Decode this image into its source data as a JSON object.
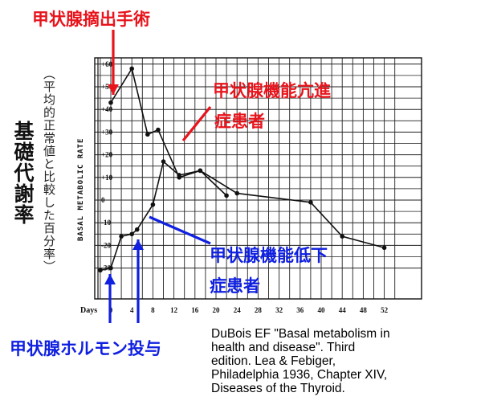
{
  "annotations": {
    "thyroidectomy": "甲状腺摘出手術",
    "hyper_line1": "甲状腺機能亢進",
    "hyper_line2": "症患者",
    "hypo_line1": "甲状腺機能低下",
    "hypo_line2": "症患者",
    "hormone": "甲状腺ホルモン投与"
  },
  "y_axis_label": {
    "main": "基礎代謝率",
    "sub": "（平均的正常値と比較した百分率）"
  },
  "citation": {
    "line1": "DuBois EF  \"Basal metabolism in",
    "line2": "health and   disease\".  Third",
    "line3": "edition.  Lea & Febiger,",
    "line4": "Philadelphia 1936, Chapter XIV,",
    "line5": "Diseases of the Thyroid."
  },
  "colors": {
    "red": "#e8141c",
    "blue": "#1020e0",
    "ink": "#111111"
  },
  "chart_data": {
    "type": "line",
    "xlabel": "Days",
    "ylabel": "BASAL METABOLIC RATE",
    "xlim": [
      -2,
      54
    ],
    "ylim": [
      -35,
      62
    ],
    "x_ticks": [
      0,
      4,
      8,
      12,
      16,
      20,
      24,
      28,
      32,
      36,
      40,
      44,
      48,
      52
    ],
    "x_tick_labels": [
      "0",
      "4",
      "8",
      "12",
      "16",
      "20",
      "24",
      "28",
      "32",
      "36",
      "40",
      "44",
      "48",
      "52"
    ],
    "y_ticks": [
      60,
      50,
      40,
      30,
      20,
      10,
      0,
      -10,
      -20,
      -30
    ],
    "y_tick_labels": [
      "+60",
      "+50",
      "+40",
      "+30",
      "+20",
      "+10",
      "0",
      "-10",
      "-20",
      "-30"
    ],
    "grid": true,
    "series": [
      {
        "x": [
          0,
          4,
          7,
          9,
          13,
          17,
          22
        ],
        "y": [
          43,
          58,
          29,
          31,
          10,
          13,
          2
        ]
      },
      {
        "x": [
          -2,
          0,
          2,
          4,
          5,
          8,
          10,
          13,
          17,
          24,
          38,
          44,
          52
        ],
        "y": [
          -31,
          -30,
          -16,
          -15,
          -13,
          -2,
          17,
          11,
          13,
          3,
          -1,
          -16,
          -21
        ]
      }
    ]
  }
}
